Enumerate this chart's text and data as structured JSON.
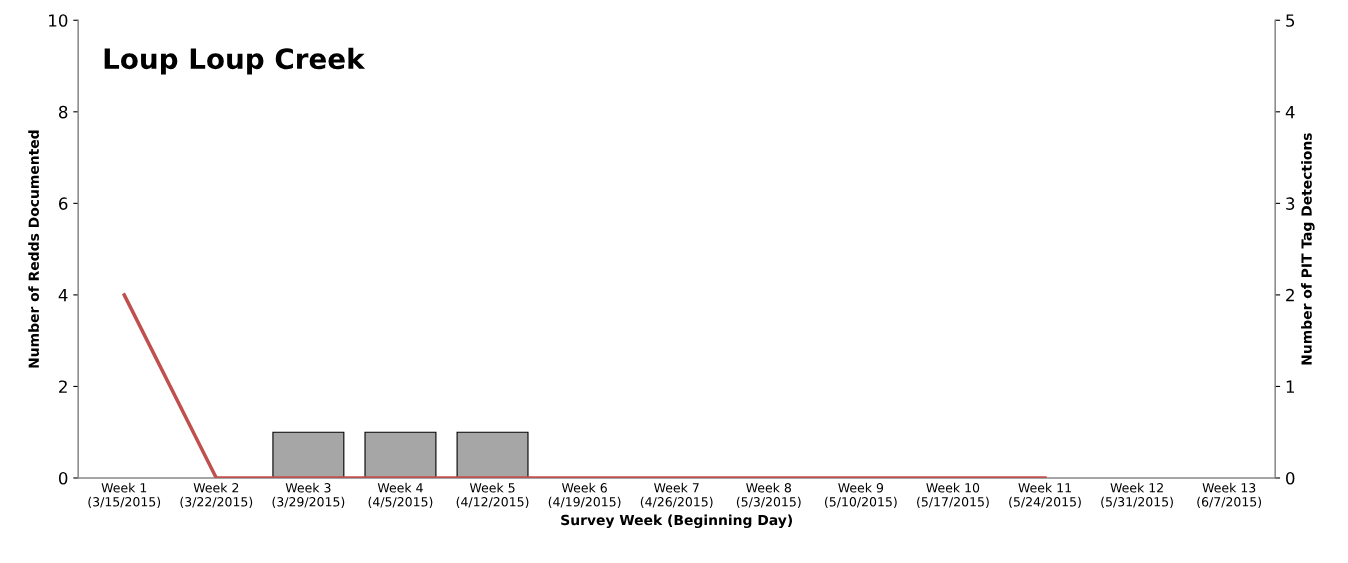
{
  "chart_data": {
    "type": "bar",
    "title": "Loup Loup Creek",
    "xlabel": "Survey Week (Beginning Day)",
    "ylabel": "Number of Redds Documented",
    "y2label": "Number of PIT Tag Detections",
    "categories": [
      "Week 1\n(3/15/2015)",
      "Week 2\n(3/22/2015)",
      "Week 3\n(3/29/2015)",
      "Week 4\n(4/5/2015)",
      "Week 5\n(4/12/2015)",
      "Week 6\n(4/19/2015)",
      "Week 7\n(4/26/2015)",
      "Week 8\n(5/3/2015)",
      "Week 9\n(5/10/2015)",
      "Week 10\n(5/17/2015)",
      "Week 11\n(5/24/2015)",
      "Week 12\n(5/31/2015)",
      "Week 13\n(6/7/2015)"
    ],
    "series": [
      {
        "color": "#a6a6a6",
        "values": [
          null,
          null,
          1,
          1,
          1,
          null,
          null,
          null,
          null,
          null,
          null,
          null,
          null
        ]
      },
      {
        "type": "line",
        "axis": "y2",
        "color": "#c0504d",
        "values": [
          2,
          0,
          0,
          0,
          0,
          0,
          0,
          0,
          0,
          0,
          0,
          null,
          null
        ]
      }
    ],
    "ylim": [
      0,
      10
    ],
    "yticks": [
      0,
      2,
      4,
      6,
      8,
      10
    ],
    "y2lim": [
      0,
      5
    ],
    "y2ticks": [
      0,
      1,
      2,
      3,
      4,
      5
    ],
    "grid": false,
    "legend": false
  }
}
